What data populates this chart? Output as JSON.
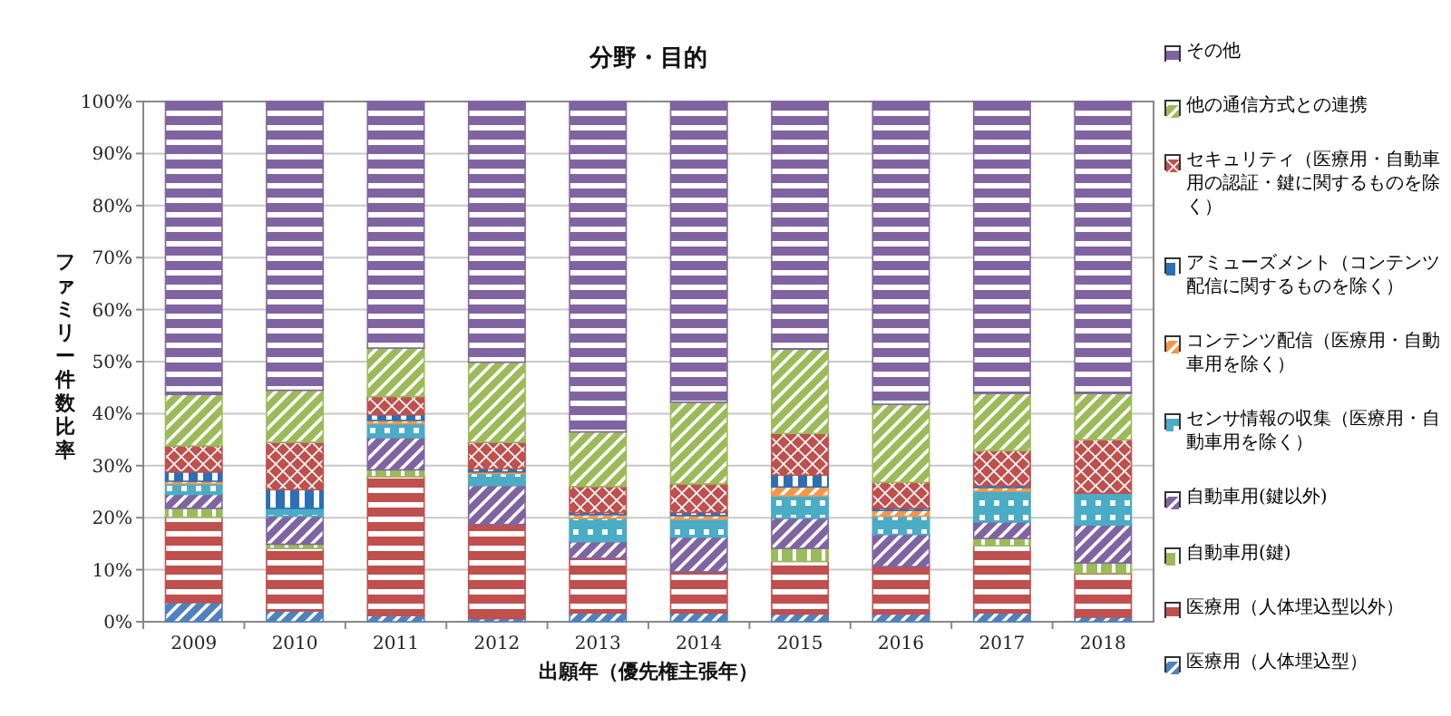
{
  "chart_data": {
    "type": "bar",
    "stacked": true,
    "title": "分野・目的",
    "xlabel": "出願年（優先権主張年）",
    "ylabel": "ファミリー件数比率",
    "categories": [
      "2009",
      "2010",
      "2011",
      "2012",
      "2013",
      "2014",
      "2015",
      "2016",
      "2017",
      "2018"
    ],
    "ylim": [
      0,
      100
    ],
    "yticks": [
      {
        "value": 0,
        "label": "0%"
      },
      {
        "value": 10,
        "label": "10%"
      },
      {
        "value": 20,
        "label": "20%"
      },
      {
        "value": 30,
        "label": "30%"
      },
      {
        "value": 40,
        "label": "40%"
      },
      {
        "value": 50,
        "label": "50%"
      },
      {
        "value": 60,
        "label": "60%"
      },
      {
        "value": 70,
        "label": "70%"
      },
      {
        "value": 80,
        "label": "80%"
      },
      {
        "value": 90,
        "label": "90%"
      },
      {
        "value": 100,
        "label": "100%"
      }
    ],
    "grid": "y",
    "legend": "right",
    "series": [
      {
        "name": "医療用（人体埋込型）",
        "color": "#4f81bd",
        "values": [
          3.7,
          2.1,
          1.2,
          0.6,
          1.7,
          1.7,
          1.5,
          1.5,
          1.7,
          0.9
        ]
      },
      {
        "name": "医療用（人体埋込型以外）",
        "color": "#c0504d",
        "values": [
          16.4,
          12.0,
          26.7,
          18.1,
          10.5,
          7.9,
          10.1,
          9.1,
          12.9,
          8.4
        ]
      },
      {
        "name": "自動車用(鍵)",
        "color": "#9bbb59",
        "values": [
          1.7,
          0.8,
          1.3,
          null,
          0,
          0,
          2.5,
          0,
          1.4,
          2.0
        ]
      },
      {
        "name": "自動車用(鍵以外)",
        "color": "#8064a2",
        "values": [
          2.7,
          5.4,
          6.2,
          7.5,
          3.2,
          6.7,
          5.8,
          6.2,
          3.2,
          7.3
        ]
      },
      {
        "name": "センサ情報の収集（医療用・自動車用を除く）",
        "color": "#4bacc6",
        "values": [
          2.0,
          1.5,
          2.7,
          2.3,
          4.5,
          3.4,
          4.3,
          3.5,
          5.9,
          6.1
        ]
      },
      {
        "name": "コンテンツ配信（医療用・自動車用を除く）",
        "color": "#f79646",
        "values": [
          0.5,
          null,
          0.6,
          0.3,
          0.7,
          0.7,
          1.7,
          1.1,
          0.7,
          0
        ]
      },
      {
        "name": "アミューズメント（コンテンツ配信に関するものを除く）",
        "color": "#2c6fb5",
        "values": [
          1.8,
          3.6,
          1.1,
          0.6,
          0.4,
          0.6,
          2.3,
          0.4,
          0.3,
          0
        ]
      },
      {
        "name": "セキュリティ（医療用・自動車用の認証・鍵に関するものを除く）",
        "color": "#c0504d",
        "values": [
          5.0,
          9.1,
          3.5,
          5.1,
          5.0,
          5.5,
          8.0,
          5.0,
          6.8,
          10.3
        ]
      },
      {
        "name": "他の通信方式との連携",
        "color": "#9bbb59",
        "values": [
          9.9,
          10.0,
          9.3,
          15.4,
          10.5,
          15.7,
          16.2,
          15.0,
          11.0,
          8.9
        ]
      },
      {
        "name": "その他",
        "color": "#8064a2",
        "values": [
          56.3,
          55.5,
          47.4,
          50.1,
          63.5,
          57.8,
          47.6,
          58.2,
          56.1,
          56.1
        ]
      }
    ]
  }
}
